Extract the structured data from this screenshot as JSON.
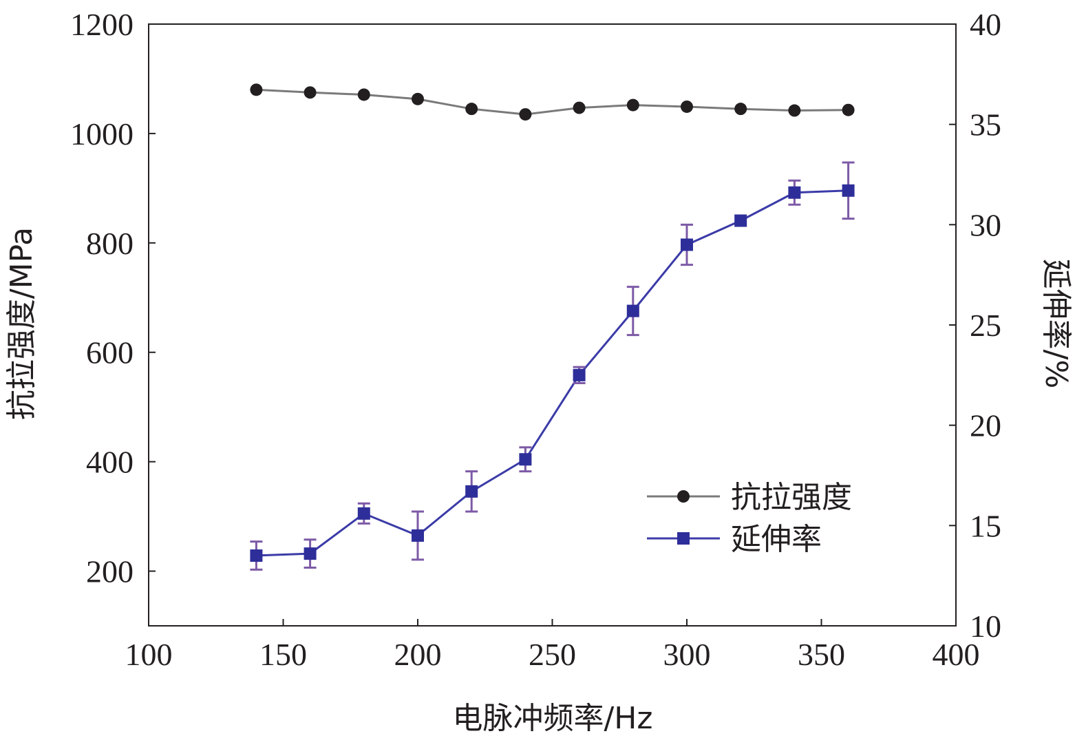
{
  "chart_data": {
    "type": "line",
    "x": [
      140,
      160,
      180,
      200,
      220,
      240,
      260,
      280,
      300,
      320,
      340,
      360
    ],
    "xlabel": "电脉冲频率/Hz",
    "xlim": [
      100,
      400
    ],
    "xticks": [
      "100",
      "150",
      "200",
      "250",
      "300",
      "350",
      "400"
    ],
    "ylabel_left": "抗拉强度/MPa",
    "ylim_left": [
      100,
      1200
    ],
    "yticks_left": [
      "200",
      "400",
      "600",
      "800",
      "1000",
      "1200"
    ],
    "ylabel_right": "延伸率/%",
    "ylim_right": [
      10,
      40
    ],
    "yticks_right": [
      "10",
      "15",
      "20",
      "25",
      "30",
      "35",
      "40"
    ],
    "legend_position": "lower-right",
    "grid": false,
    "series": [
      {
        "name": "抗拉强度",
        "axis": "left",
        "marker": "circle",
        "color": "#231f20",
        "line_color": "#7a7a7a",
        "values": [
          1080,
          1075,
          1071,
          1063,
          1045,
          1035,
          1047,
          1052,
          1049,
          1045,
          1042,
          1043
        ]
      },
      {
        "name": "延伸率",
        "axis": "right",
        "marker": "square",
        "color": "#2e2e9a",
        "line_color": "#3b3ba8",
        "error_color": "#7d5aa6",
        "values": [
          13.5,
          13.6,
          15.6,
          14.5,
          16.7,
          18.3,
          22.5,
          25.7,
          29.0,
          30.2,
          31.6,
          31.7
        ],
        "errors": [
          0.7,
          0.7,
          0.5,
          1.2,
          1.0,
          0.6,
          0.4,
          1.2,
          1.0,
          0.0,
          0.6,
          1.4
        ]
      }
    ]
  }
}
